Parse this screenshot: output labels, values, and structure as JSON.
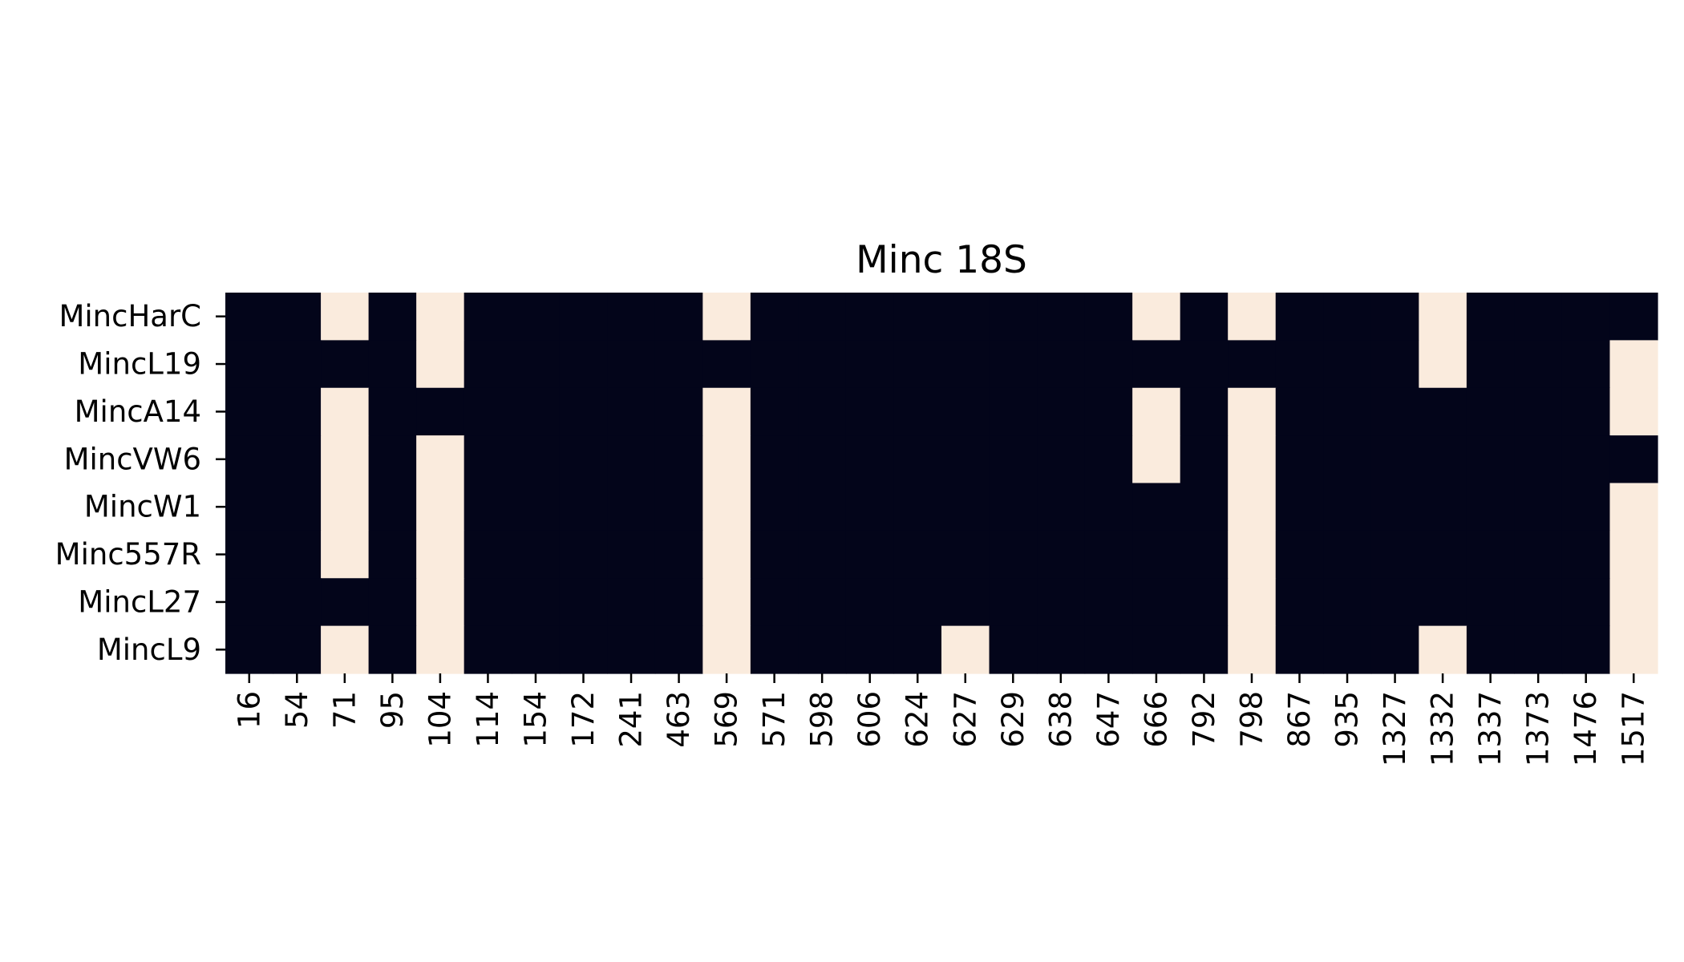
{
  "chart_data": {
    "type": "heatmap",
    "title": "Minc 18S",
    "xlabel": "",
    "ylabel": "",
    "x": [
      "16",
      "54",
      "71",
      "95",
      "104",
      "114",
      "154",
      "172",
      "241",
      "463",
      "569",
      "571",
      "598",
      "606",
      "624",
      "627",
      "629",
      "638",
      "647",
      "666",
      "792",
      "798",
      "867",
      "935",
      "1327",
      "1332",
      "1337",
      "1373",
      "1476",
      "1517"
    ],
    "y": [
      "MincHarC",
      "MincL19",
      "MincA14",
      "MincVW6",
      "MincW1",
      "Minc557R",
      "MincL27",
      "MincL9"
    ],
    "values": [
      [
        0,
        0,
        1,
        0,
        1,
        0,
        0,
        0,
        0,
        0,
        1,
        0,
        0,
        0,
        0,
        0,
        0,
        0,
        0,
        1,
        0,
        1,
        0,
        0,
        0,
        1,
        0,
        0,
        0,
        0
      ],
      [
        0,
        0,
        0,
        0,
        1,
        0,
        0,
        0,
        0,
        0,
        0,
        0,
        0,
        0,
        0,
        0,
        0,
        0,
        0,
        0,
        0,
        0,
        0,
        0,
        0,
        1,
        0,
        0,
        0,
        1
      ],
      [
        0,
        0,
        1,
        0,
        0,
        0,
        0,
        0,
        0,
        0,
        1,
        0,
        0,
        0,
        0,
        0,
        0,
        0,
        0,
        1,
        0,
        1,
        0,
        0,
        0,
        0,
        0,
        0,
        0,
        1
      ],
      [
        0,
        0,
        1,
        0,
        1,
        0,
        0,
        0,
        0,
        0,
        1,
        0,
        0,
        0,
        0,
        0,
        0,
        0,
        0,
        1,
        0,
        1,
        0,
        0,
        0,
        0,
        0,
        0,
        0,
        0
      ],
      [
        0,
        0,
        1,
        0,
        1,
        0,
        0,
        0,
        0,
        0,
        1,
        0,
        0,
        0,
        0,
        0,
        0,
        0,
        0,
        0,
        0,
        1,
        0,
        0,
        0,
        0,
        0,
        0,
        0,
        1
      ],
      [
        0,
        0,
        1,
        0,
        1,
        0,
        0,
        0,
        0,
        0,
        1,
        0,
        0,
        0,
        0,
        0,
        0,
        0,
        0,
        0,
        0,
        1,
        0,
        0,
        0,
        0,
        0,
        0,
        0,
        1
      ],
      [
        0,
        0,
        0,
        0,
        1,
        0,
        0,
        0,
        0,
        0,
        1,
        0,
        0,
        0,
        0,
        0,
        0,
        0,
        0,
        0,
        0,
        1,
        0,
        0,
        0,
        0,
        0,
        0,
        0,
        1
      ],
      [
        0,
        0,
        1,
        0,
        1,
        0,
        0,
        0,
        0,
        0,
        1,
        0,
        0,
        0,
        0,
        1,
        0,
        0,
        0,
        0,
        0,
        1,
        0,
        0,
        0,
        1,
        0,
        0,
        0,
        1
      ]
    ],
    "colors": {
      "0": "#03051a",
      "1": "#faebdd"
    },
    "colorbar": false,
    "grid": false
  }
}
